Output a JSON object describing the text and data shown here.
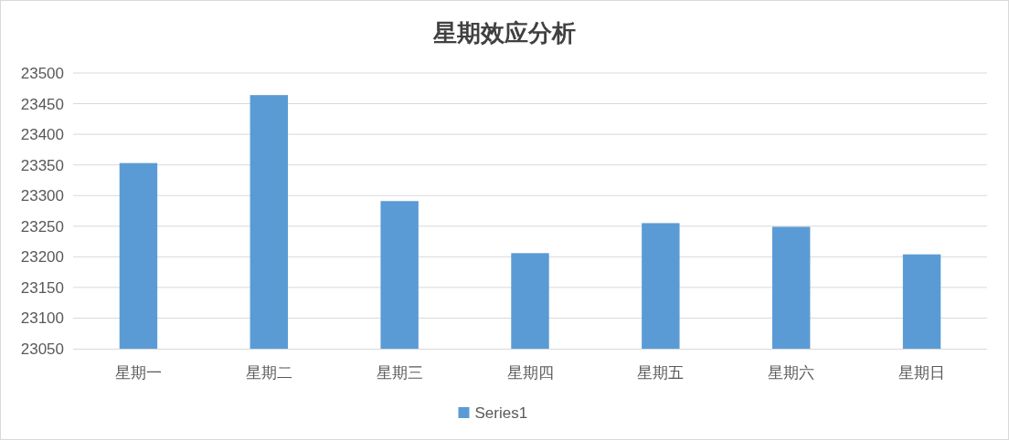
{
  "chart_data": {
    "type": "bar",
    "title": "星期效应分析",
    "categories": [
      "星期一",
      "星期二",
      "星期三",
      "星期四",
      "星期五",
      "星期六",
      "星期日"
    ],
    "series": [
      {
        "name": "Series1",
        "color": "#5b9bd5",
        "values": [
          23353,
          23464,
          23291,
          23206,
          23255,
          23249,
          23204
        ]
      }
    ],
    "ylim": [
      23050,
      23500
    ],
    "yticks": [
      23050,
      23100,
      23150,
      23200,
      23250,
      23300,
      23350,
      23400,
      23450,
      23500
    ],
    "grid": "y",
    "legend": "bottom"
  }
}
